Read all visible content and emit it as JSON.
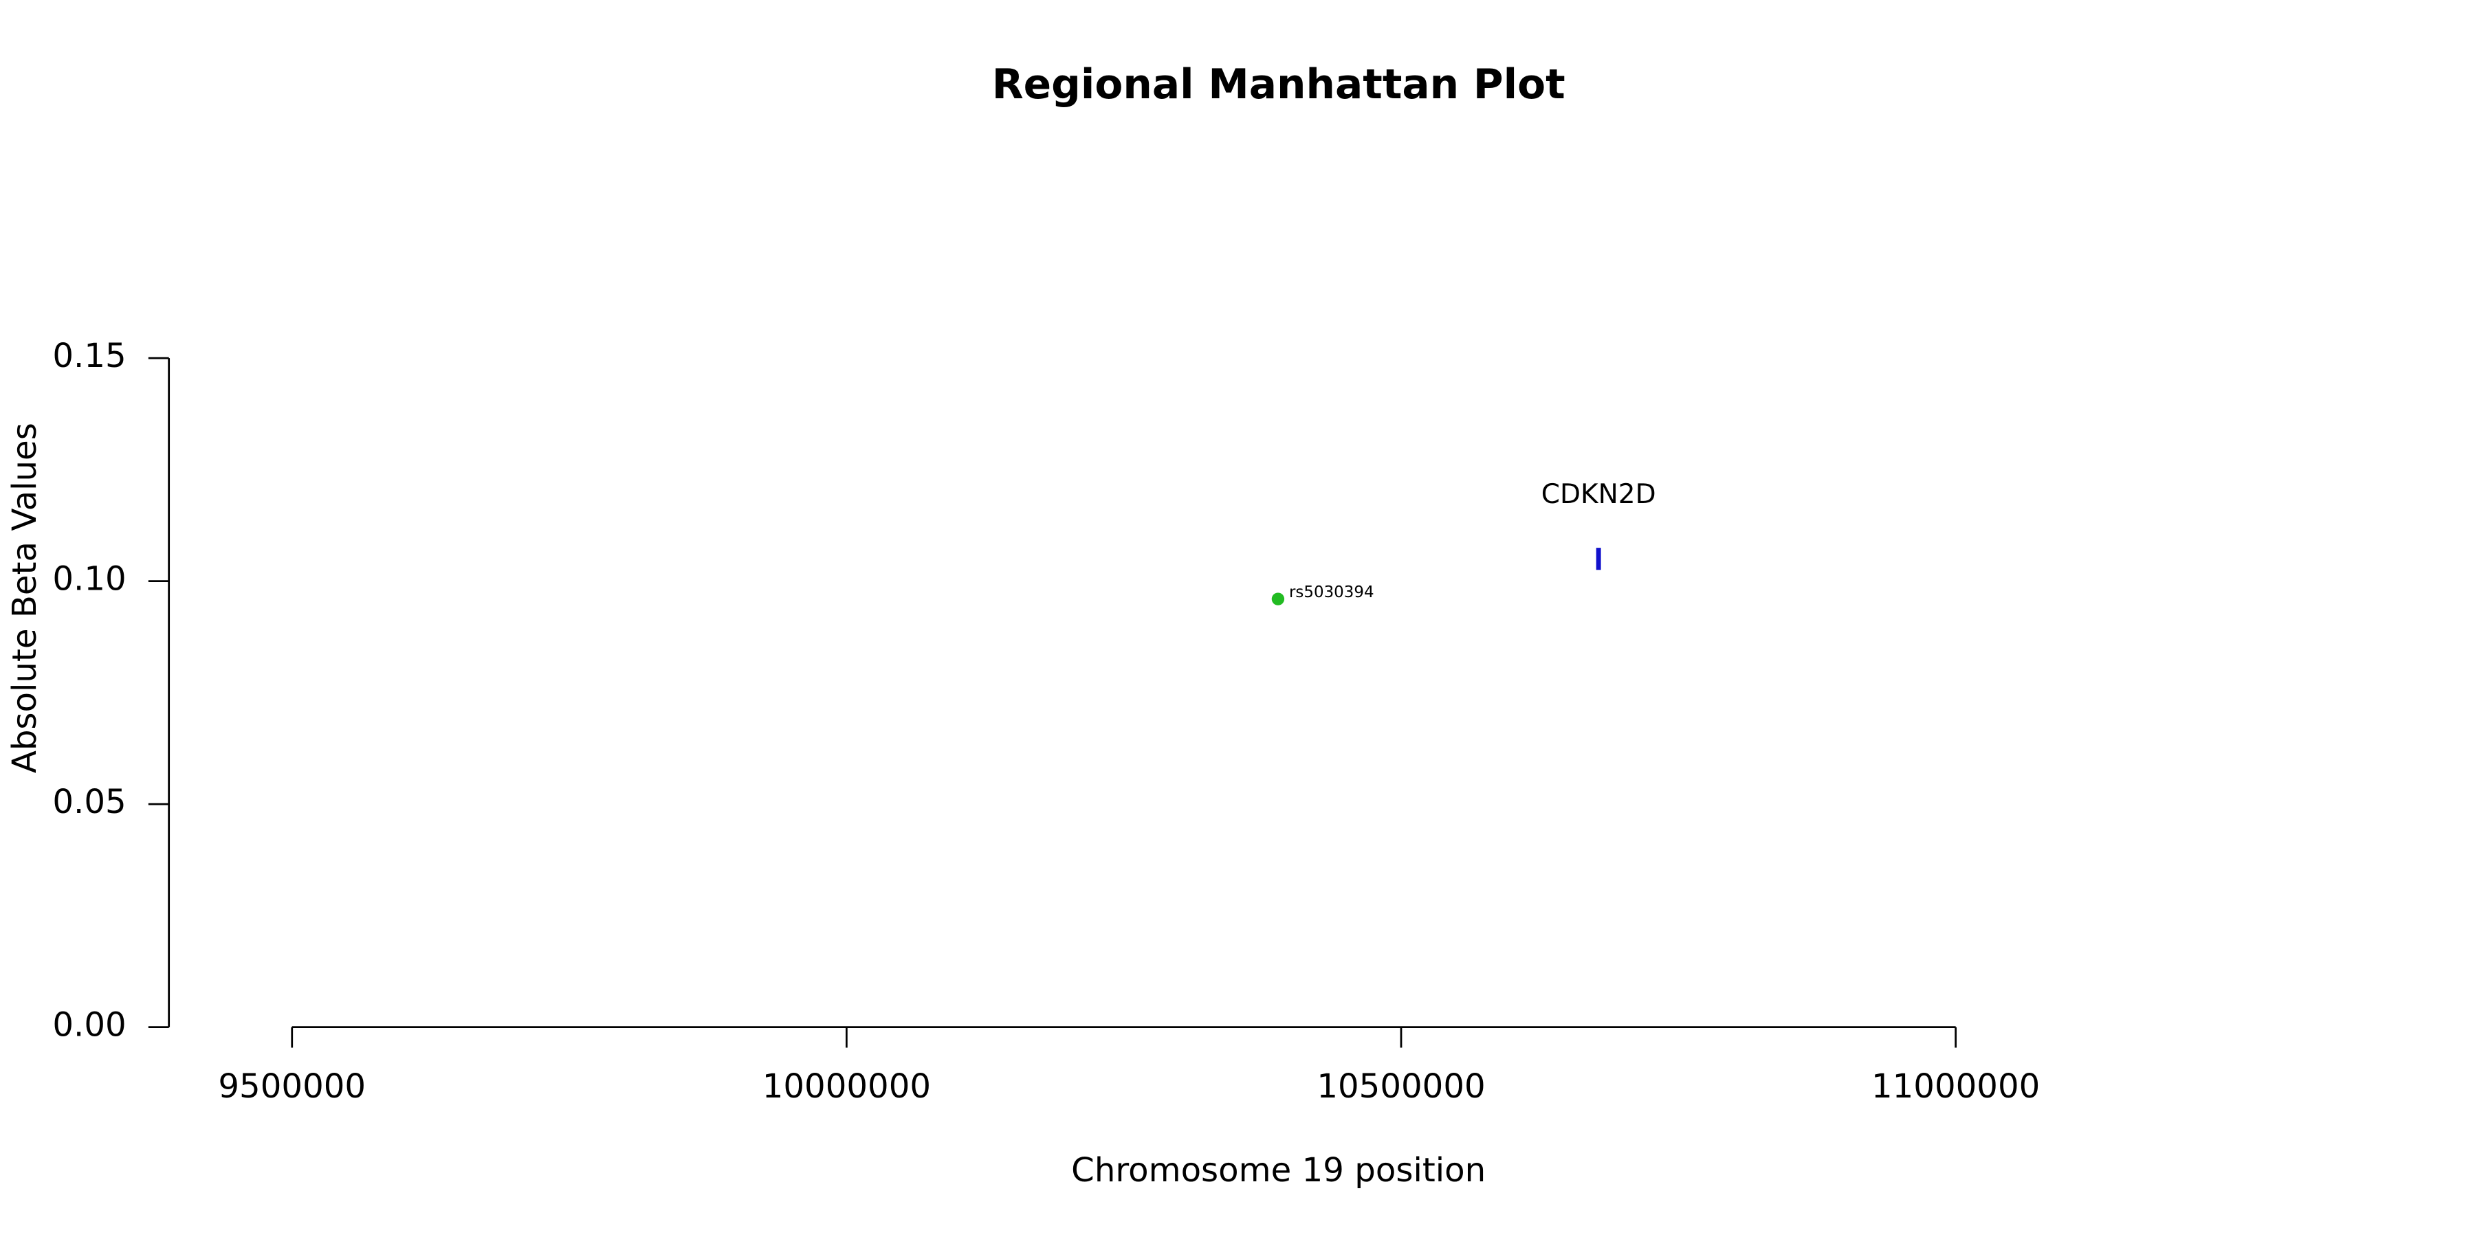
{
  "chart_data": {
    "type": "scatter",
    "title": "Regional Manhattan Plot",
    "xlabel": "Chromosome 19 position",
    "ylabel": "Absolute Beta Values",
    "xlim": [
      9500000,
      11000000
    ],
    "xticks": [
      9500000,
      10000000,
      10500000,
      11000000
    ],
    "ylim": [
      0,
      0.15
    ],
    "yticks": [
      {
        "value": 0,
        "label": "0.00"
      },
      {
        "value": 0.05,
        "label": "0.05"
      },
      {
        "value": 0.1,
        "label": "0.10"
      },
      {
        "value": 0.15,
        "label": "0.15"
      }
    ],
    "points": [
      {
        "label": "rs5030394",
        "x": 10389000,
        "y": 0.096,
        "color": "#22bb22"
      }
    ],
    "genes": [
      {
        "label": "CDKN2D",
        "x": 10678000,
        "y": 0.105,
        "color": "#1111cc"
      }
    ]
  }
}
